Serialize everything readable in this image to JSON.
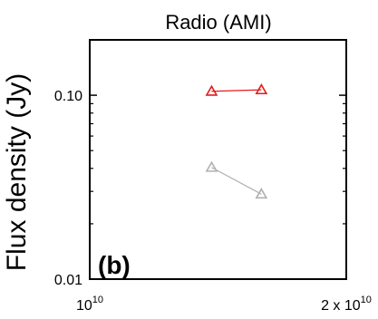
{
  "chart_data": {
    "type": "scatter",
    "title": "Radio (AMI)",
    "ylabel": "Flux density (Jy)",
    "xlabel": "",
    "annotation": "(b)",
    "xscale": "log",
    "yscale": "log",
    "xlim": [
      10000000000,
      20000000000
    ],
    "ylim": [
      0.01,
      0.2
    ],
    "grid": false,
    "yticks": [
      {
        "value": 0.1,
        "label": "0.10"
      },
      {
        "value": 0.01,
        "label": "0.01"
      }
    ],
    "xticks": [
      {
        "value": 10000000000,
        "base": "10",
        "exp": "10"
      },
      {
        "value": 20000000000,
        "base": "2 x 10",
        "exp": "10"
      }
    ],
    "series": [
      {
        "color": "#e31a1c",
        "marker": "triangle",
        "x": [
          13900000000,
          15900000000
        ],
        "y": [
          0.105,
          0.107
        ]
      },
      {
        "color": "#b0b0b0",
        "marker": "triangle",
        "x": [
          13900000000,
          15900000000
        ],
        "y": [
          0.0405,
          0.029
        ]
      }
    ]
  }
}
